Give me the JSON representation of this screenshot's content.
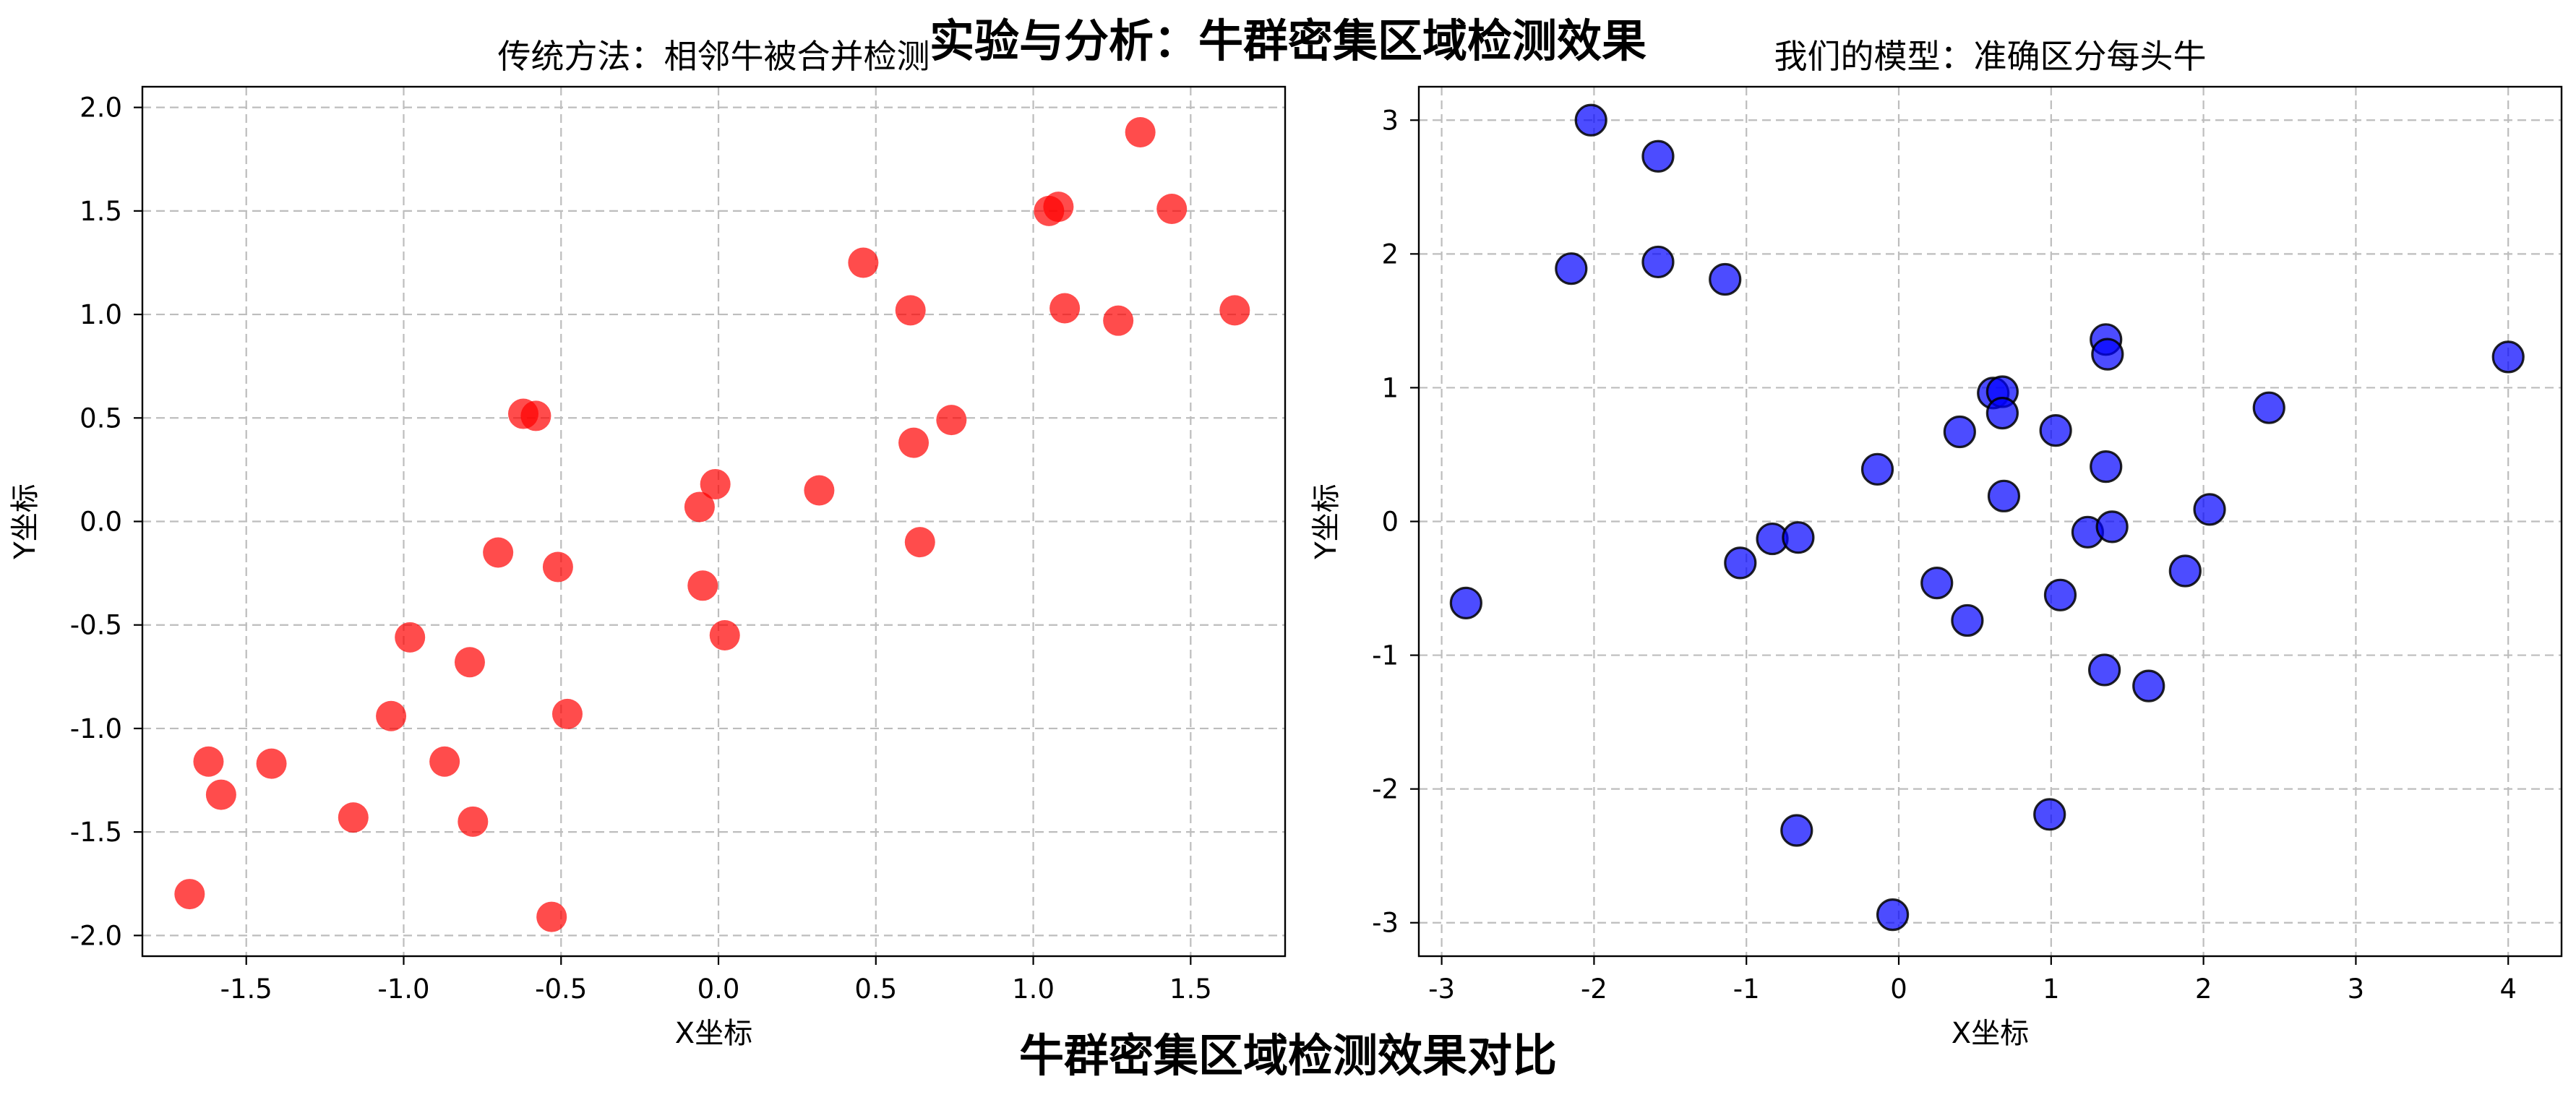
{
  "figure": {
    "top_title": "实验与分析：牛群密集区域检测效果",
    "bottom_title": "牛群密集区域检测效果对比"
  },
  "chart_data": [
    {
      "type": "scatter",
      "title": "传统方法：相邻牛被合并检测",
      "xlabel": "X坐标",
      "ylabel": "Y坐标",
      "xlim": [
        -1.83,
        1.8
      ],
      "ylim": [
        -2.1,
        2.1
      ],
      "xticks": [
        -1.5,
        -1.0,
        -0.5,
        0.0,
        0.5,
        1.0,
        1.5
      ],
      "xtick_labels": [
        "-1.5",
        "-1.0",
        "-0.5",
        "0.0",
        "0.5",
        "1.0",
        "1.5"
      ],
      "yticks": [
        -2.0,
        -1.5,
        -1.0,
        -0.5,
        0.0,
        0.5,
        1.0,
        1.5,
        2.0
      ],
      "ytick_labels": [
        "-2.0",
        "-1.5",
        "-1.0",
        "-0.5",
        "0.0",
        "0.5",
        "1.0",
        "1.5",
        "2.0"
      ],
      "grid": true,
      "marker_color": "#ff0000",
      "marker_edge": "none",
      "marker_alpha": 0.7,
      "points": [
        [
          -1.68,
          -1.8
        ],
        [
          -1.62,
          -1.16
        ],
        [
          -1.58,
          -1.32
        ],
        [
          -1.42,
          -1.17
        ],
        [
          -1.16,
          -1.43
        ],
        [
          -1.04,
          -0.94
        ],
        [
          -0.98,
          -0.56
        ],
        [
          -0.87,
          -1.16
        ],
        [
          -0.79,
          -0.68
        ],
        [
          -0.78,
          -1.45
        ],
        [
          -0.7,
          -0.15
        ],
        [
          -0.62,
          0.52
        ],
        [
          -0.58,
          0.51
        ],
        [
          -0.53,
          -1.91
        ],
        [
          -0.51,
          -0.22
        ],
        [
          -0.48,
          -0.93
        ],
        [
          -0.06,
          0.07
        ],
        [
          -0.05,
          -0.31
        ],
        [
          -0.01,
          0.18
        ],
        [
          0.02,
          -0.55
        ],
        [
          0.32,
          0.15
        ],
        [
          0.46,
          1.25
        ],
        [
          0.61,
          1.02
        ],
        [
          0.62,
          0.38
        ],
        [
          0.64,
          -0.1
        ],
        [
          0.74,
          0.49
        ],
        [
          1.05,
          1.5
        ],
        [
          1.08,
          1.52
        ],
        [
          1.1,
          1.03
        ],
        [
          1.27,
          0.97
        ],
        [
          1.34,
          1.88
        ],
        [
          1.44,
          1.51
        ],
        [
          1.64,
          1.02
        ]
      ]
    },
    {
      "type": "scatter",
      "title": "我们的模型：准确区分每头牛",
      "xlabel": "X坐标",
      "ylabel": "Y坐标",
      "xlim": [
        -3.15,
        4.35
      ],
      "ylim": [
        -3.25,
        3.25
      ],
      "xticks": [
        -3,
        -2,
        -1,
        0,
        1,
        2,
        3,
        4
      ],
      "xtick_labels": [
        "-3",
        "-2",
        "-1",
        "0",
        "1",
        "2",
        "3",
        "4"
      ],
      "yticks": [
        -3,
        -2,
        -1,
        0,
        1,
        2,
        3
      ],
      "ytick_labels": [
        "-3",
        "-2",
        "-1",
        "0",
        "1",
        "2",
        "3"
      ],
      "grid": true,
      "marker_color": "#0000ff",
      "marker_edge": "#000000",
      "marker_alpha": 0.7,
      "points": [
        [
          -2.84,
          -0.61
        ],
        [
          -2.15,
          1.89
        ],
        [
          -2.02,
          3.0
        ],
        [
          -1.58,
          2.73
        ],
        [
          -1.58,
          1.94
        ],
        [
          -1.14,
          1.81
        ],
        [
          -1.04,
          -0.31
        ],
        [
          -0.83,
          -0.13
        ],
        [
          -0.66,
          -0.12
        ],
        [
          -0.67,
          -2.31
        ],
        [
          -0.14,
          0.39
        ],
        [
          -0.04,
          -2.94
        ],
        [
          0.25,
          -0.46
        ],
        [
          0.4,
          0.67
        ],
        [
          0.45,
          -0.74
        ],
        [
          0.62,
          0.96
        ],
        [
          0.68,
          0.97
        ],
        [
          0.68,
          0.81
        ],
        [
          0.69,
          0.19
        ],
        [
          0.99,
          -2.19
        ],
        [
          1.03,
          0.68
        ],
        [
          1.06,
          -0.55
        ],
        [
          1.24,
          -0.08
        ],
        [
          1.35,
          -1.11
        ],
        [
          1.36,
          0.41
        ],
        [
          1.36,
          1.36
        ],
        [
          1.37,
          1.25
        ],
        [
          1.4,
          -0.04
        ],
        [
          1.64,
          -1.23
        ],
        [
          1.88,
          -0.37
        ],
        [
          2.04,
          0.09
        ],
        [
          2.43,
          0.85
        ],
        [
          4.0,
          1.23
        ]
      ]
    }
  ]
}
